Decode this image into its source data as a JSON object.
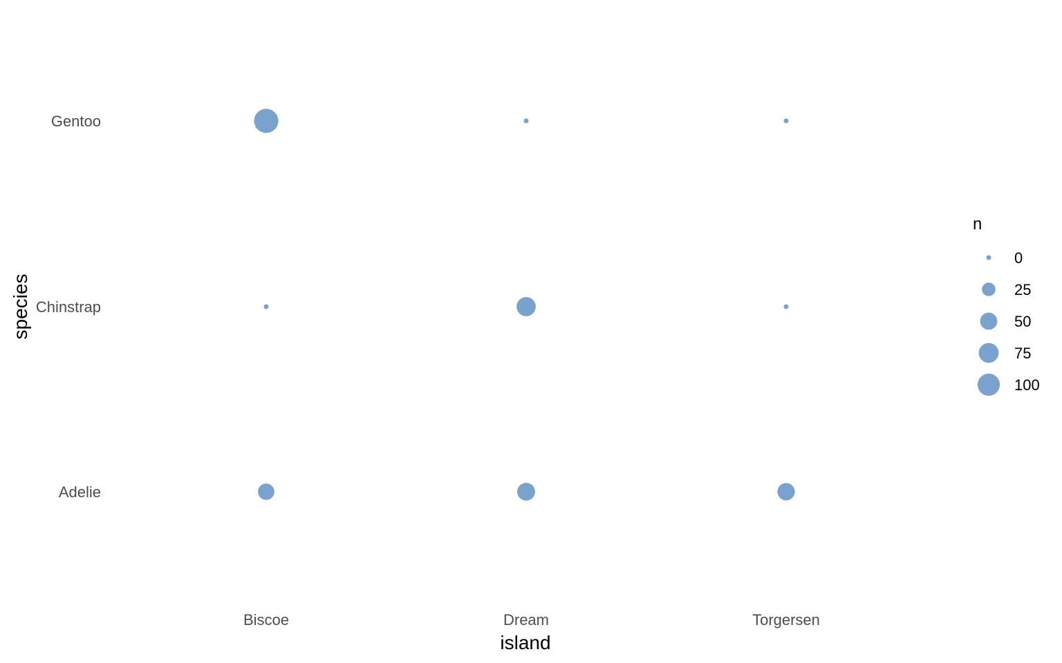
{
  "chart_data": {
    "type": "scatter",
    "xlabel": "island",
    "ylabel": "species",
    "x_categories": [
      "Biscoe",
      "Dream",
      "Torgersen"
    ],
    "y_categories": [
      "Adelie",
      "Chinstrap",
      "Gentoo"
    ],
    "size_variable": "n",
    "points": [
      {
        "x": "Biscoe",
        "y": "Adelie",
        "n": 44
      },
      {
        "x": "Dream",
        "y": "Adelie",
        "n": 56
      },
      {
        "x": "Torgersen",
        "y": "Adelie",
        "n": 52
      },
      {
        "x": "Biscoe",
        "y": "Chinstrap",
        "n": 0
      },
      {
        "x": "Dream",
        "y": "Chinstrap",
        "n": 68
      },
      {
        "x": "Torgersen",
        "y": "Chinstrap",
        "n": 0
      },
      {
        "x": "Biscoe",
        "y": "Gentoo",
        "n": 124
      },
      {
        "x": "Dream",
        "y": "Gentoo",
        "n": 0
      },
      {
        "x": "Torgersen",
        "y": "Gentoo",
        "n": 0
      }
    ],
    "legend": {
      "title": "n",
      "position": "right",
      "breaks": [
        0,
        25,
        50,
        75,
        100
      ],
      "labels": [
        "0",
        "25",
        "50",
        "75",
        "100"
      ]
    },
    "grid": false,
    "point_color": "#6f9ac8"
  }
}
